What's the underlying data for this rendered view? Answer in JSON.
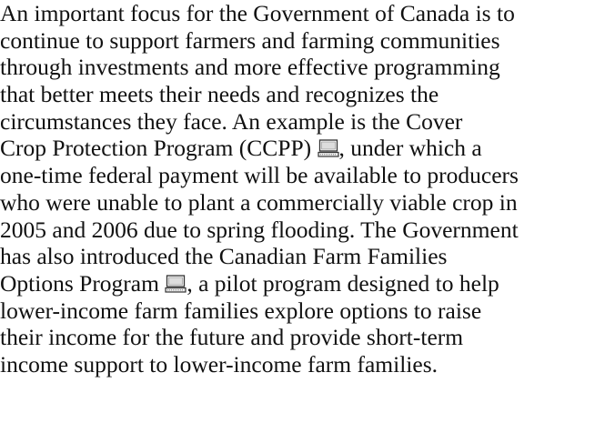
{
  "paragraph": {
    "lines": [
      [
        "An important focus for the Government of Canada is to"
      ],
      [
        "continue to support farmers and farming communities"
      ],
      [
        "through investments and more effective programming"
      ],
      [
        "that better meets their needs and recognizes the"
      ],
      [
        "circumstances they face. An example is the Cover"
      ],
      [
        "Crop Protection Program (CCPP) ",
        ", under which a"
      ],
      [
        "one-time federal payment will be available to producers"
      ],
      [
        "who were unable to plant a commercially viable crop in"
      ],
      [
        "2005 and 2006 due to spring flooding. The Government"
      ],
      [
        "has also introduced the Canadian Farm Families"
      ],
      [
        "Options Program ",
        ", a pilot program designed to help"
      ],
      [
        "lower-income farm families explore options to raise"
      ],
      [
        "their income for the future and provide short-term"
      ],
      [
        "income support to lower-income farm families."
      ]
    ]
  }
}
